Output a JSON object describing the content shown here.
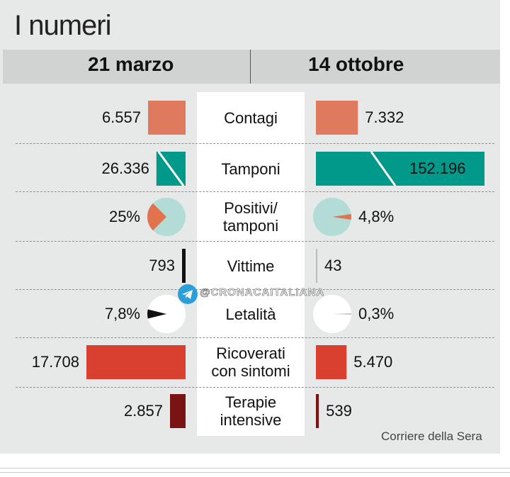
{
  "title": "I numeri",
  "left_header": "21 marzo",
  "right_header": "14 ottobre",
  "source": "Corriere della Sera",
  "watermark": "@CRONACAITALIANA",
  "colors": {
    "contagi": "#e07a5f",
    "tamponi": "#00998a",
    "positivi_pie": "#e2734f",
    "pie_bg": "#b3dcd7",
    "letalita": "#111111",
    "ricoverati": "#d9402f",
    "terapie": "#7a1414",
    "vittime": "#111111"
  },
  "chart_data": {
    "type": "bar",
    "series_names": [
      "21 marzo",
      "14 ottobre"
    ],
    "rows": [
      {
        "key": "contagi",
        "label": "Contagi",
        "kind": "bar",
        "left": 6557,
        "right": 7332,
        "left_label": "6.557",
        "right_label": "7.332"
      },
      {
        "key": "tamponi",
        "label": "Tamponi",
        "kind": "bar",
        "left": 26336,
        "right": 152196,
        "left_label": "26.336",
        "right_label": "152.196"
      },
      {
        "key": "positivi",
        "label": "Positivi/ tamponi",
        "kind": "pie",
        "left": 25,
        "right": 4.8,
        "left_label": "25%",
        "right_label": "4,8%"
      },
      {
        "key": "vittime",
        "label": "Vittime",
        "kind": "bar",
        "left": 793,
        "right": 43,
        "left_label": "793",
        "right_label": "43"
      },
      {
        "key": "letalita",
        "label": "Letalità",
        "kind": "pie",
        "left": 7.8,
        "right": 0.3,
        "left_label": "7,8%",
        "right_label": "0,3%"
      },
      {
        "key": "ricoverati",
        "label": "Ricoverati con sintomi",
        "kind": "bar",
        "left": 17708,
        "right": 5470,
        "left_label": "17.708",
        "right_label": "5.470"
      },
      {
        "key": "terapie",
        "label": "Terapie intensive",
        "kind": "bar",
        "left": 2857,
        "right": 539,
        "left_label": "2.857",
        "right_label": "539"
      }
    ]
  }
}
